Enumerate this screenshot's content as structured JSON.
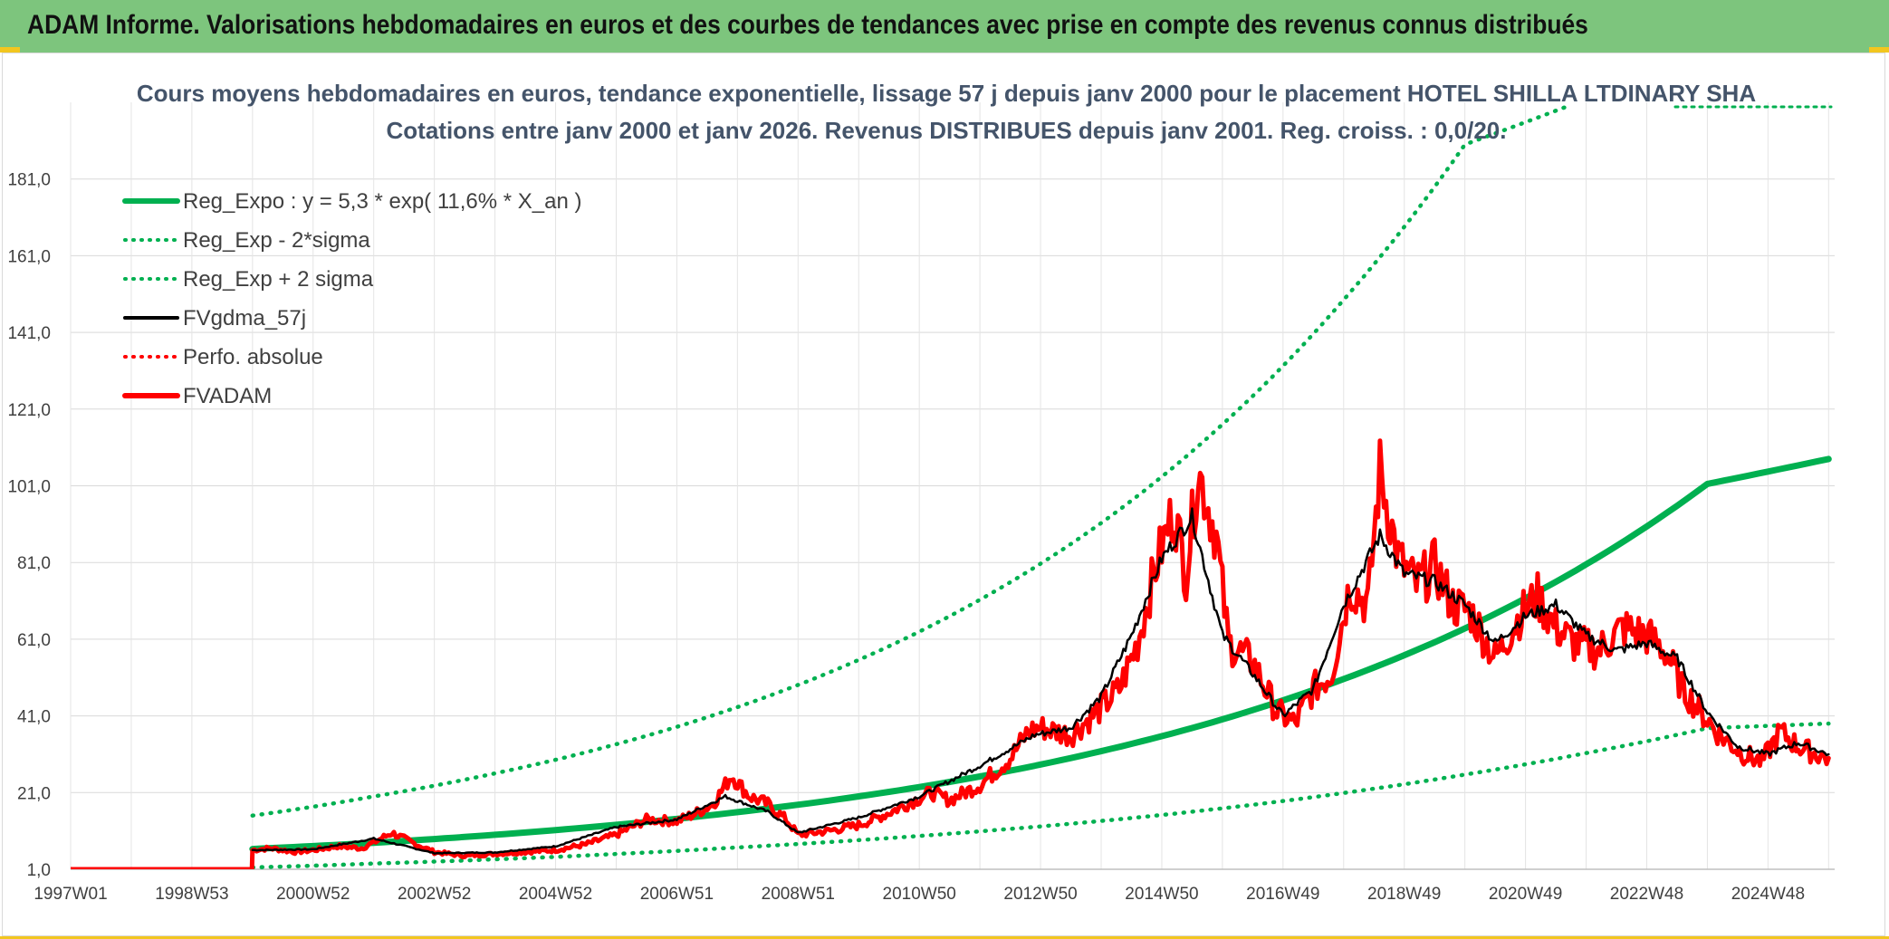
{
  "header": {
    "title": "ADAM Informe. Valorisations hebdomadaires en euros et des courbes de tendances avec prise en compte des revenus connus distribués"
  },
  "colors": {
    "banner": "#7dc57d",
    "accent": "#f2c61f",
    "reg_green": "#00b050",
    "price_red": "#ff0000",
    "smooth_black": "#000000"
  },
  "chart_data": {
    "type": "line",
    "title": "Cours moyens hebdomadaires en euros, tendance exponentielle, lissage 57 j depuis janv 2000 pour le placement HOTEL SHILLA LTDINARY SHA",
    "subtitle": "Cotations entre janv 2000 et janv 2026. Revenus DISTRIBUES depuis janv 2001. Reg. croiss. : 0,0/20.",
    "xlabel": "",
    "ylabel": "",
    "xlim": [
      1997.0,
      2026.1
    ],
    "ylim": [
      1.0,
      201.0
    ],
    "y_ticks": [
      "1,0",
      "21,0",
      "41,0",
      "61,0",
      "81,0",
      "101,0",
      "121,0",
      "141,0",
      "161,0",
      "181,0"
    ],
    "y_tick_values": [
      1,
      21,
      41,
      61,
      81,
      101,
      121,
      141,
      161,
      181
    ],
    "x_ticks": [
      "1997W01",
      "1998W53",
      "2000W52",
      "2002W52",
      "2004W52",
      "2006W51",
      "2008W51",
      "2010W50",
      "2012W50",
      "2014W50",
      "2016W49",
      "2018W49",
      "2020W49",
      "2022W48",
      "2024W48"
    ],
    "x_tick_values": [
      1997.0,
      1999.0,
      2001.0,
      2003.0,
      2005.0,
      2007.0,
      2009.0,
      2011.0,
      2013.0,
      2015.0,
      2017.0,
      2019.0,
      2021.0,
      2023.0,
      2025.0
    ],
    "legend_position": "top-left",
    "legend": [
      {
        "name": "Reg_Expo : y = 5,3 * exp( 11,6% *  X_an )",
        "style": "solid-thick",
        "color": "#00b050"
      },
      {
        "name": "Reg_Exp - 2*sigma",
        "style": "dotted",
        "color": "#00b050"
      },
      {
        "name": "Reg_Exp + 2 sigma",
        "style": "dotted",
        "color": "#00b050"
      },
      {
        "name": "FVgdma_57j",
        "style": "solid",
        "color": "#000000"
      },
      {
        "name": "Perfo. absolue",
        "style": "dotted",
        "color": "#ff0000"
      },
      {
        "name": "FVADAM",
        "style": "solid-thick",
        "color": "#ff0000"
      }
    ],
    "series": [
      {
        "name": "Reg_Expo",
        "x": [
          2000.0,
          2002.0,
          2004.0,
          2006.0,
          2008.0,
          2010.0,
          2012.0,
          2014.0,
          2016.0,
          2018.0,
          2020.0,
          2022.0,
          2024.0,
          2026.0
        ],
        "values": [
          6.3,
          7.9,
          10.0,
          12.6,
          15.9,
          20.0,
          25.2,
          31.8,
          40.1,
          50.6,
          63.8,
          80.5,
          101.5,
          108.0
        ]
      },
      {
        "name": "Reg_Exp - 2*sigma",
        "x": [
          2000.0,
          2002.0,
          2004.0,
          2006.0,
          2008.0,
          2010.0,
          2012.0,
          2014.0,
          2016.0,
          2018.0,
          2020.0,
          2022.0,
          2024.0,
          2026.0
        ],
        "values": [
          1.5,
          2.5,
          3.6,
          5.0,
          6.7,
          8.6,
          10.9,
          13.6,
          16.9,
          20.9,
          25.7,
          31.3,
          37.8,
          39.0
        ]
      },
      {
        "name": "Reg_Exp + 2 sigma",
        "x": [
          2000.0,
          2002.0,
          2004.0,
          2006.0,
          2008.0,
          2010.0,
          2012.0,
          2014.0,
          2016.0,
          2018.0,
          2020.0,
          2021.7
        ],
        "values": [
          15.0,
          20.0,
          26.0,
          33.6,
          43.3,
          55.6,
          71.3,
          91.3,
          117.0,
          149.5,
          190.0,
          200.0
        ]
      },
      {
        "name": "Perfo. absolue",
        "x": [
          1997.0,
          1999.99,
          2000.0
        ],
        "values": [
          1.0,
          1.0,
          1.0
        ]
      },
      {
        "name": "FVADAM",
        "x": [
          1997.0,
          1999.99,
          2000.0,
          2000.3,
          2000.7,
          2001.0,
          2001.4,
          2001.8,
          2002.0,
          2002.3,
          2002.7,
          2003.0,
          2003.5,
          2004.0,
          2004.5,
          2005.0,
          2005.5,
          2006.0,
          2006.5,
          2007.0,
          2007.3,
          2007.6,
          2007.9,
          2008.2,
          2008.5,
          2008.8,
          2009.0,
          2009.5,
          2010.0,
          2010.4,
          2010.8,
          2011.2,
          2011.5,
          2012.0,
          2012.5,
          2012.8,
          2013.0,
          2013.5,
          2014.0,
          2014.3,
          2014.6,
          2014.9,
          2015.2,
          2015.4,
          2015.6,
          2015.9,
          2016.1,
          2016.5,
          2016.9,
          2017.2,
          2017.5,
          2017.8,
          2018.1,
          2018.4,
          2018.6,
          2018.9,
          2019.2,
          2019.5,
          2019.8,
          2020.1,
          2020.5,
          2020.9,
          2021.2,
          2021.5,
          2021.8,
          2022.2,
          2022.6,
          2023.0,
          2023.3,
          2023.6,
          2023.9,
          2024.2,
          2024.6,
          2024.9,
          2025.2,
          2025.5,
          2025.8,
          2026.0
        ],
        "values": [
          1.0,
          1.0,
          6.0,
          6.5,
          5.5,
          6.0,
          7.0,
          6.5,
          8.0,
          10.5,
          7.5,
          5.5,
          4.5,
          5.0,
          5.5,
          6.0,
          7.5,
          10.0,
          14.0,
          13.5,
          15.5,
          18.0,
          25.5,
          20.0,
          18.0,
          14.0,
          10.0,
          11.0,
          12.5,
          15.0,
          18.0,
          21.0,
          19.0,
          23.0,
          30.0,
          37.0,
          38.0,
          36.0,
          43.0,
          48.0,
          60.0,
          80.0,
          95.0,
          78.0,
          105.0,
          88.0,
          60.0,
          55.0,
          42.0,
          39.0,
          48.0,
          52.0,
          75.0,
          70.0,
          105.0,
          82.0,
          75.0,
          80.0,
          70.0,
          68.0,
          56.0,
          67.0,
          72.0,
          64.0,
          60.0,
          58.0,
          64.0,
          62.0,
          58.0,
          48.0,
          42.0,
          36.0,
          31.0,
          29.0,
          37.0,
          33.0,
          31.0,
          30.0
        ]
      },
      {
        "name": "FVgdma_57j",
        "x": [
          2000.0,
          2001.0,
          2002.0,
          2003.0,
          2004.0,
          2005.0,
          2006.0,
          2007.0,
          2007.8,
          2008.5,
          2009.0,
          2010.0,
          2011.0,
          2012.0,
          2012.9,
          2013.5,
          2014.0,
          2014.5,
          2015.0,
          2015.5,
          2016.0,
          2016.5,
          2017.0,
          2017.5,
          2018.0,
          2018.6,
          2019.0,
          2019.5,
          2020.0,
          2020.5,
          2021.0,
          2021.5,
          2022.0,
          2022.5,
          2023.0,
          2023.5,
          2024.0,
          2024.5,
          2025.0,
          2025.5,
          2026.0
        ],
        "values": [
          6.0,
          6.2,
          9.0,
          5.2,
          5.4,
          7.0,
          12.0,
          14.0,
          20.0,
          16.0,
          10.5,
          14.5,
          20.0,
          28.0,
          36.0,
          38.0,
          46.0,
          62.0,
          82.0,
          93.0,
          62.0,
          52.0,
          41.0,
          48.0,
          70.0,
          88.0,
          78.0,
          76.0,
          70.0,
          60.0,
          67.0,
          70.0,
          62.0,
          58.0,
          60.0,
          56.0,
          42.0,
          33.0,
          31.0,
          34.0,
          31.0
        ]
      }
    ]
  }
}
